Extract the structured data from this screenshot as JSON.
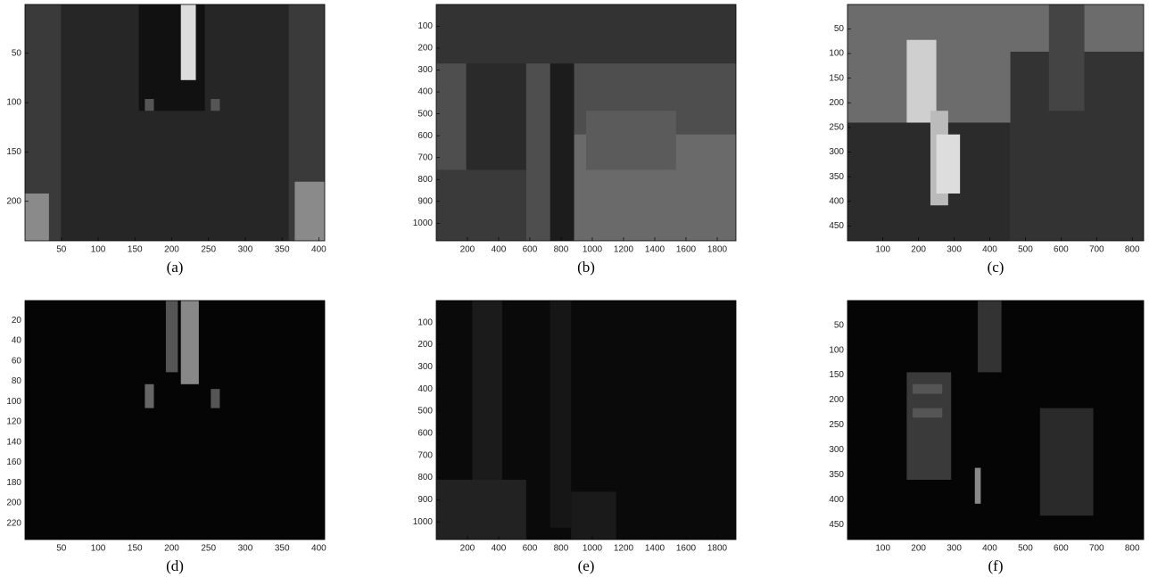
{
  "chart_data": [
    {
      "type": "image",
      "caption": "(a)",
      "xlim": [
        0.5,
        408
      ],
      "ylim": [
        0.5,
        240
      ],
      "xticks": [
        50,
        100,
        150,
        200,
        250,
        300,
        350,
        400
      ],
      "yticks": [
        50,
        100,
        150,
        200
      ]
    },
    {
      "type": "image",
      "caption": "(b)",
      "xlim": [
        0.5,
        1920
      ],
      "ylim": [
        0.5,
        1080
      ],
      "xticks": [
        200,
        400,
        600,
        800,
        1000,
        1200,
        1400,
        1600,
        1800
      ],
      "yticks": [
        100,
        200,
        300,
        400,
        500,
        600,
        700,
        800,
        900,
        1000
      ]
    },
    {
      "type": "image",
      "caption": "(c)",
      "xlim": [
        0.5,
        832
      ],
      "ylim": [
        0.5,
        480
      ],
      "xticks": [
        100,
        200,
        300,
        400,
        500,
        600,
        700,
        800
      ],
      "yticks": [
        50,
        100,
        150,
        200,
        250,
        300,
        350,
        400,
        450
      ]
    },
    {
      "type": "image",
      "caption": "(d)",
      "xlim": [
        0.5,
        408
      ],
      "ylim": [
        0.5,
        236
      ],
      "xticks": [
        50,
        100,
        150,
        200,
        250,
        300,
        350,
        400
      ],
      "yticks": [
        20,
        40,
        60,
        80,
        100,
        120,
        140,
        160,
        180,
        200,
        220
      ]
    },
    {
      "type": "image",
      "caption": "(e)",
      "xlim": [
        0.5,
        1920
      ],
      "ylim": [
        0.5,
        1080
      ],
      "xticks": [
        200,
        400,
        600,
        800,
        1000,
        1200,
        1400,
        1600,
        1800
      ],
      "yticks": [
        100,
        200,
        300,
        400,
        500,
        600,
        700,
        800,
        900,
        1000
      ]
    },
    {
      "type": "image",
      "caption": "(f)",
      "xlim": [
        0.5,
        832
      ],
      "ylim": [
        0.5,
        480
      ],
      "xticks": [
        100,
        200,
        300,
        400,
        500,
        600,
        700,
        800
      ],
      "yticks": [
        50,
        100,
        150,
        200,
        250,
        300,
        350,
        400,
        450
      ]
    }
  ]
}
